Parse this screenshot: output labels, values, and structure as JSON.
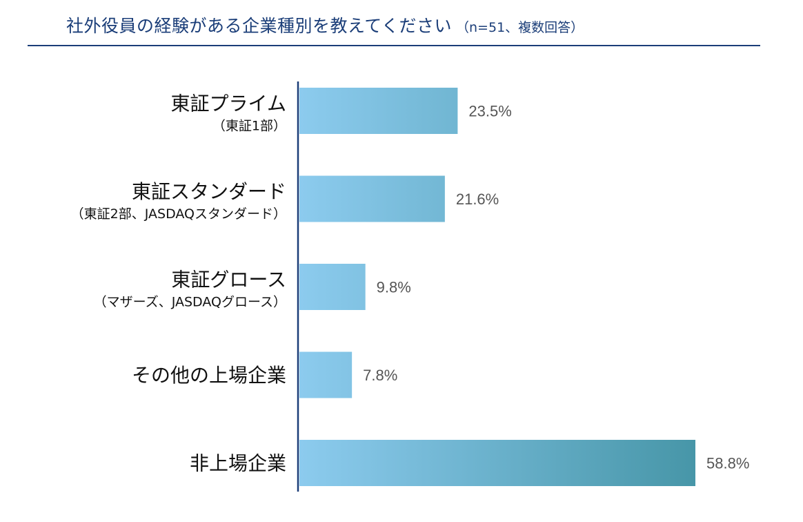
{
  "header": {
    "title": "社外役員の経験がある企業種別を教えてください",
    "subtitle": "（n=51、複数回答）"
  },
  "colors": {
    "title": "#1a3d78",
    "axis": "#1a3d78",
    "bar_start": "#8ccbee",
    "bar_end": "#4796a8",
    "label": "#111111",
    "value_label": "#555555"
  },
  "chart_data": {
    "type": "bar",
    "orientation": "horizontal",
    "title": "社外役員の経験がある企業種別を教えてください",
    "subtitle": "（n=51、複数回答）",
    "categories": [
      "東証プライム",
      "東証スタンダード",
      "東証グロース",
      "その他の上場企業",
      "非上場企業"
    ],
    "category_notes": [
      "（東証1部）",
      "（東証2部、JASDAQスタンダード）",
      "（マザーズ、JASDAQグロース）",
      "",
      ""
    ],
    "values": [
      23.5,
      21.6,
      9.8,
      7.8,
      58.8
    ],
    "value_labels": [
      "23.5%",
      "21.6%",
      "9.8%",
      "7.8%",
      "58.8%"
    ],
    "unit": "%",
    "xlim": [
      0,
      60
    ],
    "grid": false,
    "legend": "none"
  }
}
